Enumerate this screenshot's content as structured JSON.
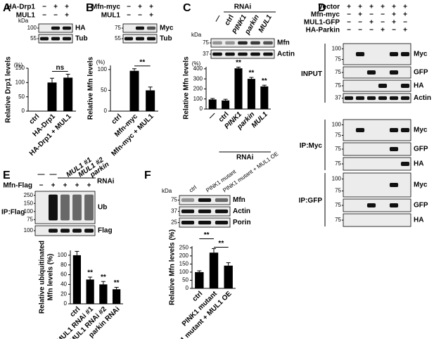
{
  "panels": {
    "A": {
      "letter": "A",
      "kda": "kDa",
      "conditions": [
        {
          "name": "HA-Drp1",
          "signs": [
            "−",
            "+",
            "+"
          ]
        },
        {
          "name": "MUL1",
          "signs": [
            "−",
            "−",
            "+"
          ]
        }
      ],
      "blots": [
        {
          "markers": [
            "100"
          ],
          "label": "HA"
        },
        {
          "markers": [
            "55"
          ],
          "label": "Tub"
        }
      ]
    },
    "B": {
      "letter": "B",
      "conditions": [
        {
          "name": "Mfn-myc",
          "signs": [
            "−",
            "+",
            "+"
          ]
        },
        {
          "name": "MUL1",
          "signs": [
            "−",
            "−",
            "+"
          ]
        }
      ],
      "blots": [
        {
          "markers": [
            "75"
          ],
          "label": "Myc"
        },
        {
          "markers": [
            "55"
          ],
          "label": "Tub"
        }
      ]
    },
    "C": {
      "letter": "C",
      "kda": "kDa",
      "lane_group": "RNAi",
      "lane_labels": [
        "—",
        "ctrl",
        "PINK1",
        "parkin",
        "MUL1"
      ],
      "blots": [
        {
          "markers": [
            "75"
          ],
          "label": "Mfn"
        },
        {
          "markers": [
            "37"
          ],
          "label": "Actin"
        }
      ]
    },
    "D": {
      "letter": "D",
      "conditions": [
        {
          "name": "Vector",
          "signs": [
            "+",
            "+",
            "+",
            "+",
            "+",
            "+"
          ]
        },
        {
          "name": "Mfn-myc",
          "signs": [
            "−",
            "+",
            "−",
            "−",
            "+",
            "+"
          ]
        },
        {
          "name": "MUL1-GFP",
          "signs": [
            "−",
            "−",
            "+",
            "−",
            "+",
            "−"
          ]
        },
        {
          "name": "HA-Parkin",
          "signs": [
            "−",
            "−",
            "−",
            "+",
            "−",
            "+"
          ]
        }
      ],
      "sections": [
        {
          "label": "INPUT",
          "blots": [
            {
              "markers": [
                "100",
                "75"
              ],
              "label": "Myc"
            },
            {
              "markers": [
                "75"
              ],
              "label": "GFP"
            },
            {
              "markers": [
                "75"
              ],
              "label": "HA"
            },
            {
              "markers": [
                "37"
              ],
              "label": "Actin"
            }
          ]
        },
        {
          "label": "IP:Myc",
          "blots": [
            {
              "markers": [
                "100",
                "75"
              ],
              "label": "Myc"
            },
            {
              "markers": [
                "75"
              ],
              "label": "GFP"
            },
            {
              "markers": [
                "75"
              ],
              "label": "HA"
            }
          ]
        },
        {
          "label": "IP:GFP",
          "blots": [
            {
              "markers": [
                "100",
                "75"
              ],
              "label": "Myc"
            },
            {
              "markers": [
                "75"
              ],
              "label": "GFP"
            },
            {
              "markers": [
                "75"
              ],
              "label": "HA"
            }
          ]
        }
      ]
    },
    "E": {
      "letter": "E",
      "lane_group": "RNAi",
      "ip_label": "IP:Flag",
      "lane_labels": [
        "—",
        "—",
        "MUL1 #1",
        "MUL1 #2",
        "parkin"
      ],
      "conditions": [
        {
          "name": "Mfn-Flag",
          "signs": [
            "−",
            "+",
            "+",
            "+",
            "+"
          ]
        }
      ],
      "blots": [
        {
          "markers": [
            "250",
            "150",
            "100",
            "75"
          ],
          "label": "Ub"
        },
        {
          "markers": [
            "100"
          ],
          "label": "Flag"
        }
      ]
    },
    "F": {
      "letter": "F",
      "kda": "kDa",
      "lane_labels": [
        "ctrl",
        "PINK1 mutant",
        "PINK1 mutant + MUL1 OE"
      ],
      "blots": [
        {
          "markers": [
            "75"
          ],
          "label": "Mfn"
        },
        {
          "markers": [
            "37"
          ],
          "label": "Actin"
        },
        {
          "markers": [
            "25"
          ],
          "label": "Porin"
        }
      ]
    }
  },
  "chart_data": [
    {
      "type": "bar",
      "ylabel": "Relative Drp1 levels",
      "y_unit": "(%)",
      "color": "#000000",
      "categories": [
        "ctrl",
        "HA-Drp1",
        "HA-Drp1 + MUL1"
      ],
      "values": [
        0,
        100,
        117
      ],
      "errors": [
        0,
        15,
        12
      ],
      "ylim": [
        0,
        150
      ],
      "yticks": [
        0,
        50,
        100,
        150
      ],
      "annotations": [
        "ns"
      ]
    },
    {
      "type": "bar",
      "ylabel": "Relative Mfn levels",
      "y_unit": "(%)",
      "color": "#000000",
      "categories": [
        "ctrl",
        "Mfn-myc",
        "Mfn-myc + MUL1"
      ],
      "values": [
        0,
        97,
        50
      ],
      "errors": [
        0,
        5,
        8
      ],
      "ylim": [
        0,
        110
      ],
      "yticks": [
        0,
        50,
        100
      ],
      "annotations": [
        "**"
      ]
    },
    {
      "type": "bar",
      "ylabel": "Relative Mfn levels",
      "y_unit": "(%)",
      "xlabel": "RNAi",
      "color": "#000000",
      "categories": [
        "—",
        "ctrl",
        "PINK1",
        "parkin",
        "MUL1"
      ],
      "values": [
        95,
        85,
        405,
        300,
        225
      ],
      "errors": [
        10,
        12,
        12,
        15,
        12
      ],
      "ylim": [
        0,
        420
      ],
      "yticks": [
        0,
        100,
        200,
        300,
        400
      ],
      "annotations": [
        "**",
        "**",
        "**"
      ]
    },
    {
      "type": "bar",
      "ylabel_lines": [
        "Relative ubiquitinated",
        "Mfn levels (%)"
      ],
      "color": "#000000",
      "categories": [
        "ctrl",
        "MUL1 RNAi #1",
        "MUL1 RNAi #2",
        "parkin RNAi"
      ],
      "values": [
        100,
        50,
        40,
        30
      ],
      "errors": [
        8,
        5,
        6,
        4
      ],
      "ylim": [
        0,
        110
      ],
      "yticks": [
        0,
        20,
        40,
        60,
        80,
        100
      ],
      "annotations": [
        "**",
        "**",
        "**"
      ]
    },
    {
      "type": "bar",
      "ylabel": "Relative Mfn levels (%)",
      "color": "#000000",
      "categories": [
        "ctrl",
        "PINK1 mutant",
        "PINK1 mutant + MUL1 OE"
      ],
      "values": [
        100,
        220,
        140
      ],
      "errors": [
        8,
        25,
        18
      ],
      "ylim": [
        0,
        260
      ],
      "yticks": [
        0,
        50,
        100,
        150,
        200,
        250
      ],
      "annotations": [
        "**",
        "**"
      ]
    }
  ]
}
